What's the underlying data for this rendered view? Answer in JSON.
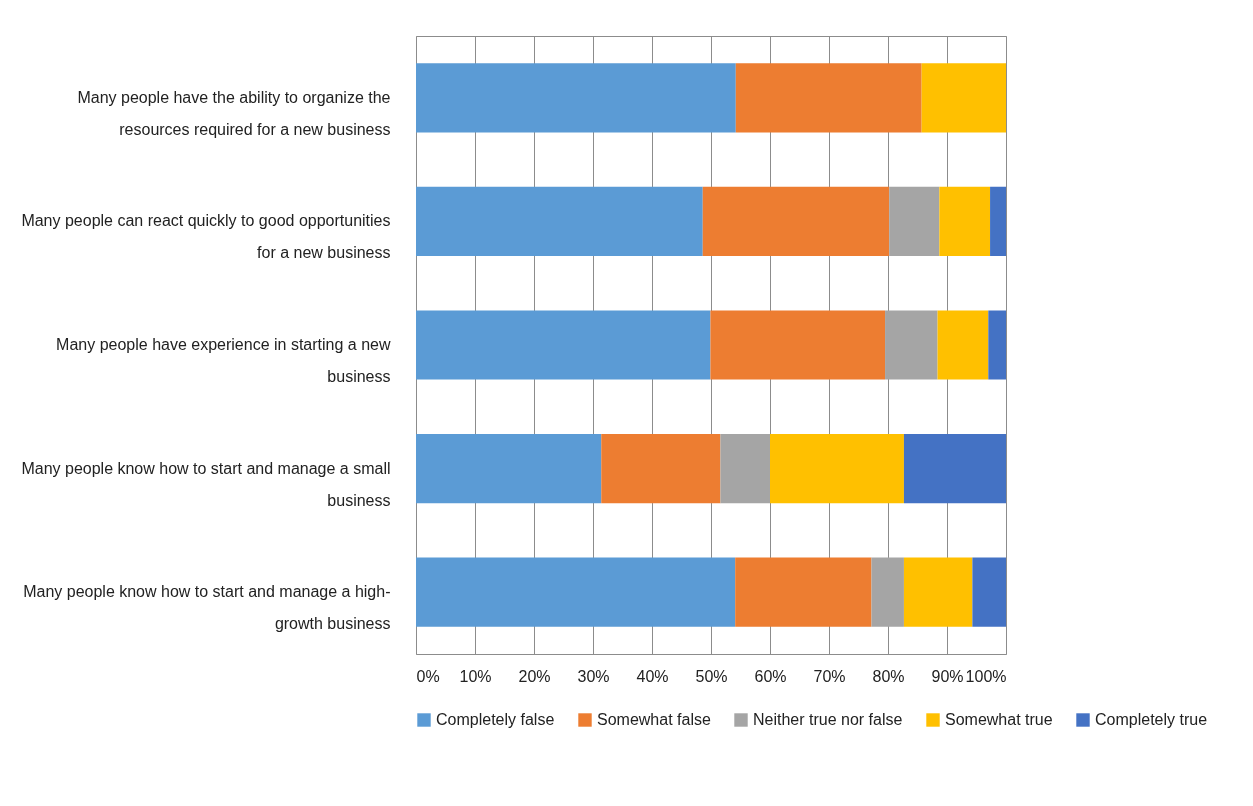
{
  "chart_data": {
    "type": "bar",
    "orientation": "horizontal",
    "stacked": true,
    "categories": [
      "Many people have the ability to organize the resources required for a new business",
      "Many people can react quickly to good opportunities for a new business",
      "Many people have experience in starting a new business",
      "Many people know how to start and manage a small business",
      "Many people know how to start and manage a high-growth business"
    ],
    "series": [
      {
        "name": "Completely false",
        "color": "#5b9bd5",
        "values": [
          54.2,
          48.6,
          49.9,
          31.4,
          54.1
        ]
      },
      {
        "name": "Somewhat false",
        "color": "#ed7d31",
        "values": [
          31.5,
          31.6,
          29.6,
          20.2,
          23.1
        ]
      },
      {
        "name": "Neither true nor false",
        "color": "#a5a5a5",
        "values": [
          0,
          8.5,
          8.9,
          8.4,
          5.5
        ]
      },
      {
        "name": "Somewhat true",
        "color": "#ffc000",
        "values": [
          14.3,
          8.6,
          8.6,
          22.7,
          11.6
        ]
      },
      {
        "name": "Completely true",
        "color": "#4472c4",
        "values": [
          0,
          2.7,
          3.0,
          17.3,
          5.7
        ]
      }
    ],
    "xlim": [
      0,
      100
    ],
    "xticks": [
      {
        "value": 0,
        "label": "0%"
      },
      {
        "value": 10,
        "label": "10%"
      },
      {
        "value": 20,
        "label": "20%"
      },
      {
        "value": 30,
        "label": "30%"
      },
      {
        "value": 40,
        "label": "40%"
      },
      {
        "value": 50,
        "label": "50%"
      },
      {
        "value": 60,
        "label": "60%"
      },
      {
        "value": 70,
        "label": "70%"
      },
      {
        "value": 80,
        "label": "80%"
      },
      {
        "value": 90,
        "label": "90%"
      },
      {
        "value": 100,
        "label": "100%"
      }
    ],
    "grid": "x",
    "legend": "bottom"
  }
}
